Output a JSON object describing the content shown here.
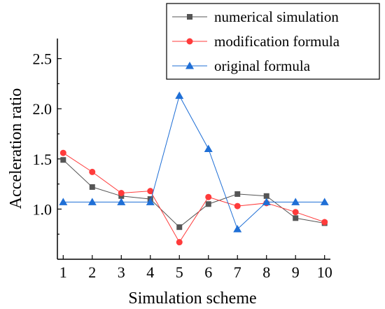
{
  "chart_data": {
    "type": "line",
    "xlabel": "Simulation scheme",
    "ylabel": "Acceleration ratio",
    "x": [
      1,
      2,
      3,
      4,
      5,
      6,
      7,
      8,
      9,
      10
    ],
    "xlim": [
      0.8,
      10.2
    ],
    "ylim": [
      0.5,
      2.7
    ],
    "yticks": [
      1.0,
      1.5,
      2.0,
      2.5
    ],
    "ytick_labels": [
      "1.0",
      "1.5",
      "2.0",
      "2.5"
    ],
    "xtick_labels": [
      "1",
      "2",
      "3",
      "4",
      "5",
      "6",
      "7",
      "8",
      "9",
      "10"
    ],
    "grid": false,
    "legend_position": "top-right",
    "series": [
      {
        "name": "numerical simulation",
        "color": "#555555",
        "marker": "square",
        "values": [
          1.49,
          1.22,
          1.13,
          1.1,
          0.82,
          1.05,
          1.15,
          1.13,
          0.91,
          0.86
        ]
      },
      {
        "name": "modification formula",
        "color": "#ff3b3b",
        "marker": "circle",
        "values": [
          1.56,
          1.37,
          1.16,
          1.18,
          0.67,
          1.12,
          1.03,
          1.06,
          0.97,
          0.87
        ]
      },
      {
        "name": "original formula",
        "color": "#1f6fd6",
        "marker": "triangle",
        "values": [
          1.07,
          1.07,
          1.07,
          1.07,
          2.13,
          1.6,
          0.8,
          1.07,
          1.07,
          1.07
        ]
      }
    ]
  }
}
